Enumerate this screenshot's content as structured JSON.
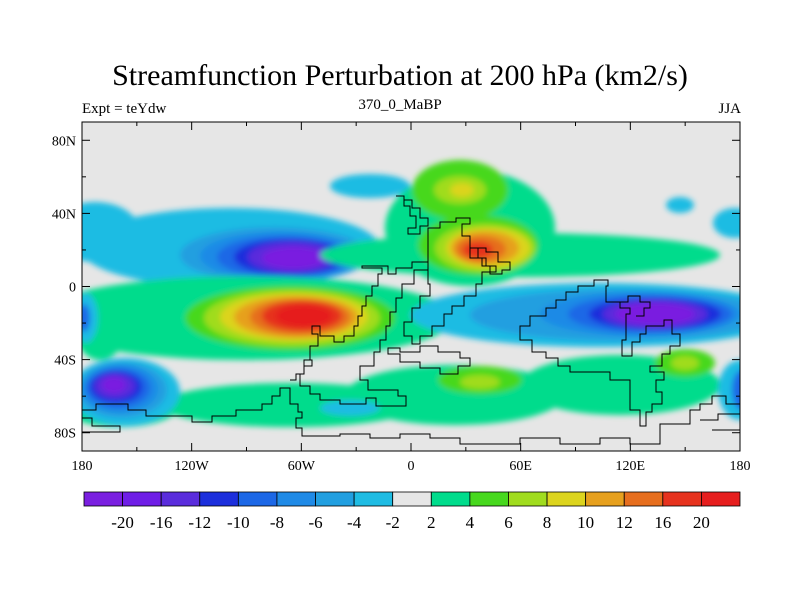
{
  "title": "Streamfunction Perturbation at 200 hPa (km2/s)",
  "subtitle_left": "Expt = teYdw",
  "subtitle_center": "370_0_MaBP",
  "subtitle_right": "JJA",
  "x_ticks": [
    {
      "value": -180,
      "label": "180"
    },
    {
      "value": -120,
      "label": "120W"
    },
    {
      "value": -60,
      "label": "60W"
    },
    {
      "value": 0,
      "label": "0"
    },
    {
      "value": 60,
      "label": "60E"
    },
    {
      "value": 120,
      "label": "120E"
    },
    {
      "value": 180,
      "label": "180"
    }
  ],
  "y_ticks": [
    {
      "value": 80,
      "label": "80N"
    },
    {
      "value": 40,
      "label": "40N"
    },
    {
      "value": 0,
      "label": "0"
    },
    {
      "value": -40,
      "label": "40S"
    },
    {
      "value": -80,
      "label": "80S"
    }
  ],
  "lon_range": [
    -180,
    180
  ],
  "lat_range": [
    -90,
    90
  ],
  "colorbar": {
    "colors": [
      "#7a1fe0",
      "#6f1ee6",
      "#5a2cdc",
      "#1c2fdc",
      "#1c67e6",
      "#1f8ae6",
      "#229fe0",
      "#1fbce3",
      "#e6e6e6",
      "#00dc8c",
      "#47d81e",
      "#a0dc1e",
      "#dcd41e",
      "#e6a01e",
      "#e66e1e",
      "#e6321e",
      "#e61e1e"
    ],
    "labels": [
      "-20",
      "-16",
      "-12",
      "-10",
      "-8",
      "-6",
      "-4",
      "-2",
      "2",
      "4",
      "6",
      "8",
      "10",
      "12",
      "16",
      "20"
    ]
  },
  "chart_data": {
    "type": "heatmap",
    "title": "Streamfunction Perturbation at 200 hPa (km2/s)",
    "units": "km2/s",
    "xlabel": "",
    "ylabel": "",
    "xlim": [
      -180,
      180
    ],
    "ylim": [
      -90,
      90
    ],
    "levels": [
      -20,
      -16,
      -12,
      -10,
      -8,
      -6,
      -4,
      -2,
      2,
      4,
      6,
      8,
      10,
      12,
      16,
      20
    ],
    "features": [
      {
        "name": "subtropical-high-south-atlantic",
        "lon": -62,
        "lat": -17,
        "value": 21
      },
      {
        "name": "anticyclone-north-africa",
        "lon": 38,
        "lat": 20,
        "value": 16
      },
      {
        "name": "anticyclone-north-africa-north",
        "lon": 30,
        "lat": 52,
        "value": 7
      },
      {
        "name": "low-north-pacific",
        "lon": -85,
        "lat": 15,
        "value": -19
      },
      {
        "name": "low-indo-pacific",
        "lon": 128,
        "lat": -14,
        "value": -21
      },
      {
        "name": "low-south-pacific",
        "lon": -165,
        "lat": -56,
        "value": -20
      },
      {
        "name": "ridge-south-indian-ocean",
        "lon": 45,
        "lat": -52,
        "value": 7
      },
      {
        "name": "ridge-south-west-pacific",
        "lon": 150,
        "lat": -45,
        "value": 6
      }
    ]
  }
}
